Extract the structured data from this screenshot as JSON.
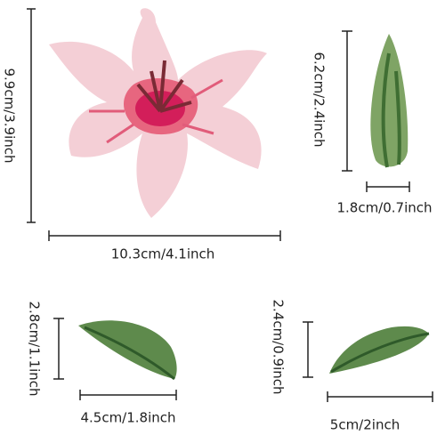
{
  "items": [
    {
      "name": "lily",
      "height_label": "9.9cm/3.9inch",
      "width_label": "10.3cm/4.1inch"
    },
    {
      "name": "bud",
      "height_label": "6.2cm/2.4inch",
      "width_label": "1.8cm/0.7inch"
    },
    {
      "name": "leaf-left",
      "height_label": "2.8cm/1.1inch",
      "width_label": "4.5cm/1.8inch"
    },
    {
      "name": "leaf-right",
      "height_label": "2.4cm/0.9inch",
      "width_label": "5cm/2inch"
    }
  ]
}
